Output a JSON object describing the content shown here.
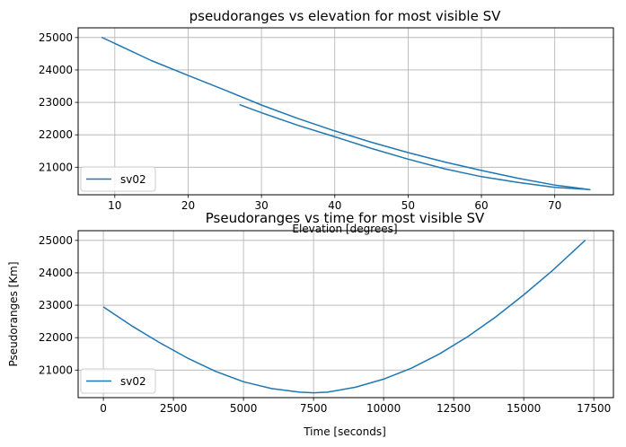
{
  "chart_data": [
    {
      "type": "line",
      "title": "pseudoranges vs elevation for most visible SV",
      "xlabel": "Elevation [degrees]",
      "ylabel": "",
      "xlim": [
        5,
        78
      ],
      "ylim": [
        20150,
        25300
      ],
      "xticks": [
        10,
        20,
        30,
        40,
        50,
        60,
        70
      ],
      "yticks": [
        21000,
        22000,
        23000,
        24000,
        25000
      ],
      "grid": true,
      "legend": "lower-left",
      "series": [
        {
          "name": "sv02",
          "color": "#1f77b4",
          "x": [
            8.2,
            15,
            20,
            25,
            30,
            35,
            40,
            45,
            50,
            55,
            60,
            65,
            70,
            74.8,
            70,
            65,
            60,
            55,
            50,
            45,
            40,
            35,
            30,
            27
          ],
          "y": [
            25010,
            24290,
            23830,
            23380,
            22920,
            22500,
            22120,
            21770,
            21450,
            21160,
            20900,
            20660,
            20450,
            20310,
            20380,
            20530,
            20710,
            20950,
            21250,
            21580,
            21940,
            22290,
            22680,
            22930
          ]
        }
      ]
    },
    {
      "type": "line",
      "title": "Pseudoranges vs time for most visible SV",
      "xlabel": "Time [seconds]",
      "ylabel": "Pseudoranges [Km]",
      "xlim": [
        -900,
        18200
      ],
      "ylim": [
        20150,
        25300
      ],
      "xticks": [
        0,
        2500,
        5000,
        7500,
        10000,
        12500,
        15000,
        17500
      ],
      "yticks": [
        21000,
        22000,
        23000,
        24000,
        25000
      ],
      "grid": true,
      "legend": "lower-left",
      "series": [
        {
          "name": "sv02",
          "color": "#1f77b4",
          "x": [
            0,
            1000,
            2000,
            3000,
            4000,
            5000,
            6000,
            7000,
            7500,
            8000,
            9000,
            10000,
            11000,
            12000,
            13000,
            14000,
            15000,
            16000,
            17200
          ],
          "y": [
            22950,
            22370,
            21850,
            21370,
            20960,
            20640,
            20430,
            20320,
            20300,
            20320,
            20470,
            20720,
            21060,
            21500,
            22030,
            22640,
            23320,
            24050,
            25010
          ]
        }
      ]
    }
  ]
}
